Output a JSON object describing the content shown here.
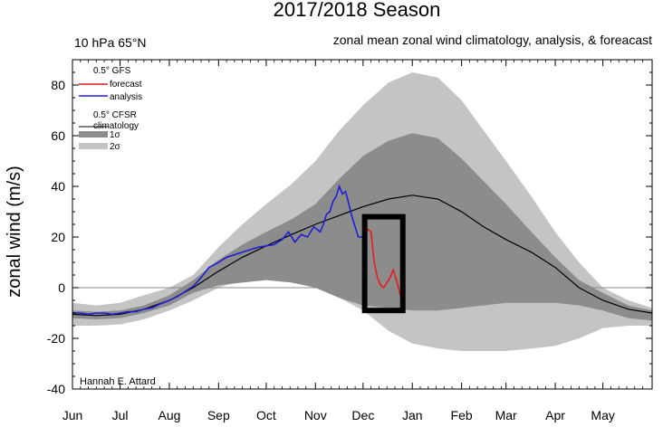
{
  "chart_data": {
    "type": "area",
    "title": "2017/2018 Season",
    "subtitle_left": "10 hPa 65°N",
    "subtitle_right": "zonal mean zonal wind climatology, analysis, & foreacast",
    "xlabel": "",
    "ylabel": "zonal wind (m/s)",
    "credit": "Hannah E. Attard",
    "x_unit": "day since Jun 1",
    "xlim": [
      0,
      365
    ],
    "ylim": [
      -40,
      90
    ],
    "yticks": [
      -40,
      -20,
      0,
      20,
      40,
      60,
      80
    ],
    "xticks": [
      {
        "label": "Jun",
        "x": 0
      },
      {
        "label": "Jul",
        "x": 30
      },
      {
        "label": "Aug",
        "x": 61
      },
      {
        "label": "Sep",
        "x": 92
      },
      {
        "label": "Oct",
        "x": 122
      },
      {
        "label": "Nov",
        "x": 153
      },
      {
        "label": "Dec",
        "x": 183
      },
      {
        "label": "Jan",
        "x": 214
      },
      {
        "label": "Feb",
        "x": 245
      },
      {
        "label": "Mar",
        "x": 273
      },
      {
        "label": "Apr",
        "x": 304
      },
      {
        "label": "May",
        "x": 334
      }
    ],
    "legend": {
      "gfs_title": "0.5° GFS",
      "forecast": "forecast",
      "analysis": "analysis",
      "cfsr_title": "0.5° CFSR",
      "climatology": "climatology",
      "sigma1": "1σ",
      "sigma2": "2σ"
    },
    "colors": {
      "band2": "#c4c4c4",
      "band1": "#8c8c8c",
      "climatology": "#000000",
      "analysis": "#1f1fd6",
      "forecast": "#e81b1b",
      "box": "#000000",
      "zero_line": "#888888"
    },
    "climatology": {
      "x": [
        0,
        15,
        30,
        45,
        61,
        76,
        92,
        107,
        122,
        138,
        153,
        168,
        183,
        199,
        214,
        230,
        245,
        259,
        273,
        289,
        304,
        319,
        334,
        350,
        365
      ],
      "values": [
        -10.5,
        -11,
        -10.5,
        -8.5,
        -5,
        0,
        6.5,
        12,
        16.5,
        21,
        25,
        28.5,
        32,
        35,
        36.5,
        35,
        30,
        24,
        19,
        14,
        8,
        0,
        -5,
        -8.5,
        -10
      ]
    },
    "band_1sigma": {
      "x": [
        0,
        15,
        30,
        45,
        61,
        76,
        92,
        107,
        122,
        138,
        153,
        168,
        183,
        199,
        214,
        230,
        245,
        259,
        273,
        289,
        304,
        319,
        334,
        350,
        365
      ],
      "upper": [
        -9,
        -9.5,
        -9,
        -7,
        -3,
        3,
        11,
        17,
        22,
        27,
        33,
        43,
        52,
        58,
        61,
        59,
        51,
        42,
        33,
        22,
        12,
        3,
        -2,
        -7,
        -9
      ],
      "lower": [
        -12,
        -12.5,
        -12,
        -10,
        -7,
        -2,
        1,
        2,
        3,
        2,
        0,
        -4,
        -7,
        -8,
        -9,
        -9,
        -8,
        -7,
        -6,
        -6,
        -6,
        -7,
        -9,
        -12,
        -13
      ]
    },
    "band_2sigma": {
      "x": [
        0,
        15,
        30,
        45,
        61,
        76,
        92,
        107,
        122,
        138,
        153,
        168,
        183,
        199,
        214,
        230,
        245,
        259,
        273,
        289,
        304,
        319,
        334,
        350,
        365
      ],
      "upper": [
        -6,
        -7,
        -6,
        -3,
        0,
        5,
        16,
        25,
        33,
        41,
        50,
        62,
        72,
        81,
        85,
        83,
        74,
        62,
        50,
        36,
        22,
        10,
        0,
        -5,
        -8
      ],
      "lower": [
        -15,
        -15,
        -14.5,
        -12.5,
        -9,
        -5,
        0,
        3,
        5,
        4,
        0,
        -4,
        -9,
        -17,
        -22,
        -24,
        -25,
        -25,
        -25,
        -24,
        -23,
        -20,
        -16,
        -15,
        -15
      ]
    },
    "analysis": {
      "x": [
        0,
        5,
        10,
        15,
        20,
        25,
        30,
        35,
        40,
        45,
        50,
        55,
        61,
        66,
        71,
        76,
        81,
        86,
        92,
        97,
        102,
        107,
        112,
        117,
        122,
        127,
        132,
        136,
        140,
        144,
        148,
        152,
        156,
        158,
        160,
        162,
        164,
        166,
        168,
        170,
        172,
        174,
        176,
        178,
        180,
        182,
        184
      ],
      "values": [
        -10,
        -10,
        -10.5,
        -10,
        -10,
        -10.5,
        -10,
        -9.5,
        -9.5,
        -8.5,
        -8,
        -6.5,
        -5,
        -3.5,
        -1.5,
        0.5,
        4,
        8,
        10,
        12,
        13,
        14,
        15,
        16,
        16.5,
        17,
        19,
        22,
        18,
        21,
        20,
        24,
        22,
        25,
        29,
        30,
        34,
        36,
        40,
        37,
        38,
        33,
        28,
        24,
        20,
        20,
        21
      ]
    },
    "forecast": {
      "x": [
        184,
        186,
        188,
        190,
        192,
        194,
        196,
        198,
        200,
        202,
        204,
        206,
        208
      ],
      "values": [
        21,
        23,
        22,
        10,
        4,
        1,
        0,
        2,
        4,
        7,
        3,
        -2,
        -5
      ]
    },
    "highlight_box": {
      "x0": 184,
      "x1": 208,
      "y0": -9,
      "y1": 28
    }
  }
}
